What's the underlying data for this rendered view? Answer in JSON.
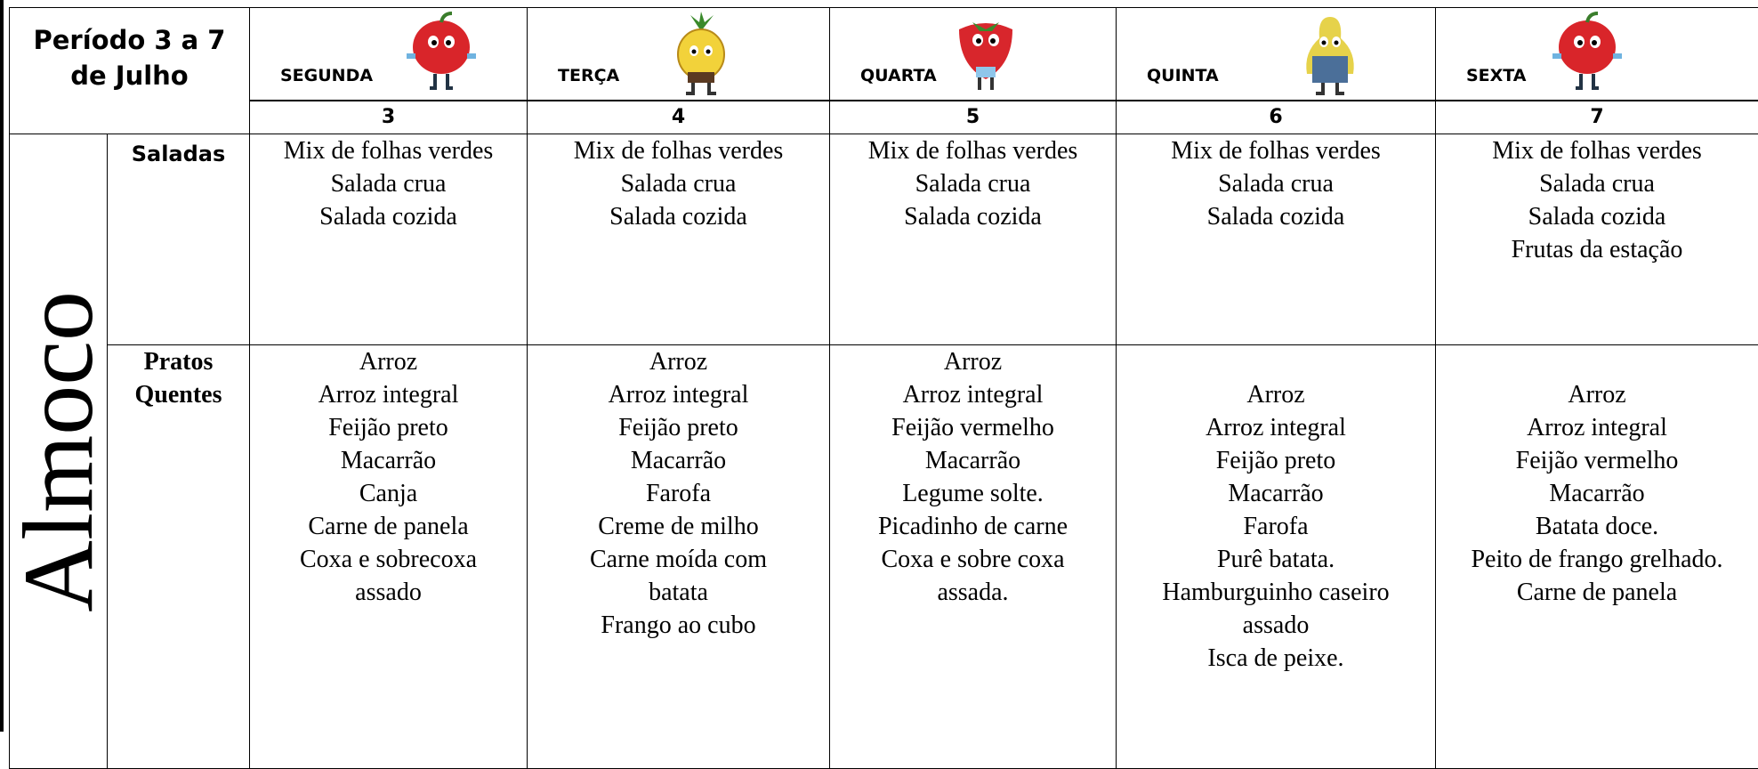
{
  "header": {
    "title": [
      "Período 3 a 7",
      "de Julho"
    ],
    "days": [
      {
        "name": "SEGUNDA",
        "date": 3
      },
      {
        "name": "TERÇA",
        "date": 4
      },
      {
        "name": "QUARTA",
        "date": 5
      },
      {
        "name": "QUINTA",
        "date": 6
      },
      {
        "name": "SEXTA",
        "date": 7
      }
    ]
  },
  "section": "Almoco",
  "rows": [
    {
      "label": [
        "Saladas"
      ],
      "cells": [
        [
          "Mix de folhas verdes",
          "Salada crua",
          "Salada cozida"
        ],
        [
          "Mix de folhas verdes",
          "Salada crua",
          "Salada cozida"
        ],
        [
          "Mix de folhas verdes",
          "Salada crua",
          "Salada cozida"
        ],
        [
          "Mix de folhas verdes",
          "Salada crua",
          "Salada cozida"
        ],
        [
          "Mix de folhas verdes",
          "Salada crua",
          "Salada cozida",
          "Frutas da estação"
        ]
      ]
    },
    {
      "label": [
        "Pratos",
        "Quentes"
      ],
      "cells": [
        [
          "Arroz",
          "Arroz integral",
          "Feijão preto",
          "Macarrão",
          "Canja",
          "Carne de panela",
          "Coxa e sobrecoxa",
          "assado"
        ],
        [
          "Arroz",
          "Arroz integral",
          "Feijão preto",
          "Macarrão",
          "Farofa",
          "Creme de milho",
          "Carne moída com",
          "batata",
          "Frango ao cubo"
        ],
        [
          "Arroz",
          "Arroz integral",
          "Feijão vermelho",
          "Macarrão",
          "Legume solte.",
          "Picadinho de carne",
          "Coxa e sobre coxa",
          "assada."
        ],
        [
          "Arroz",
          "Arroz integral",
          "Feijão preto",
          "Macarrão",
          "Farofa",
          "Purê batata.",
          "Hamburguinho caseiro",
          "assado",
          "Isca de peixe."
        ],
        [
          "Arroz",
          "Arroz integral",
          "Feijão vermelho",
          "Macarrão",
          "Batata doce.",
          "Peito de frango grelhado.",
          "Carne de panela"
        ]
      ]
    }
  ]
}
